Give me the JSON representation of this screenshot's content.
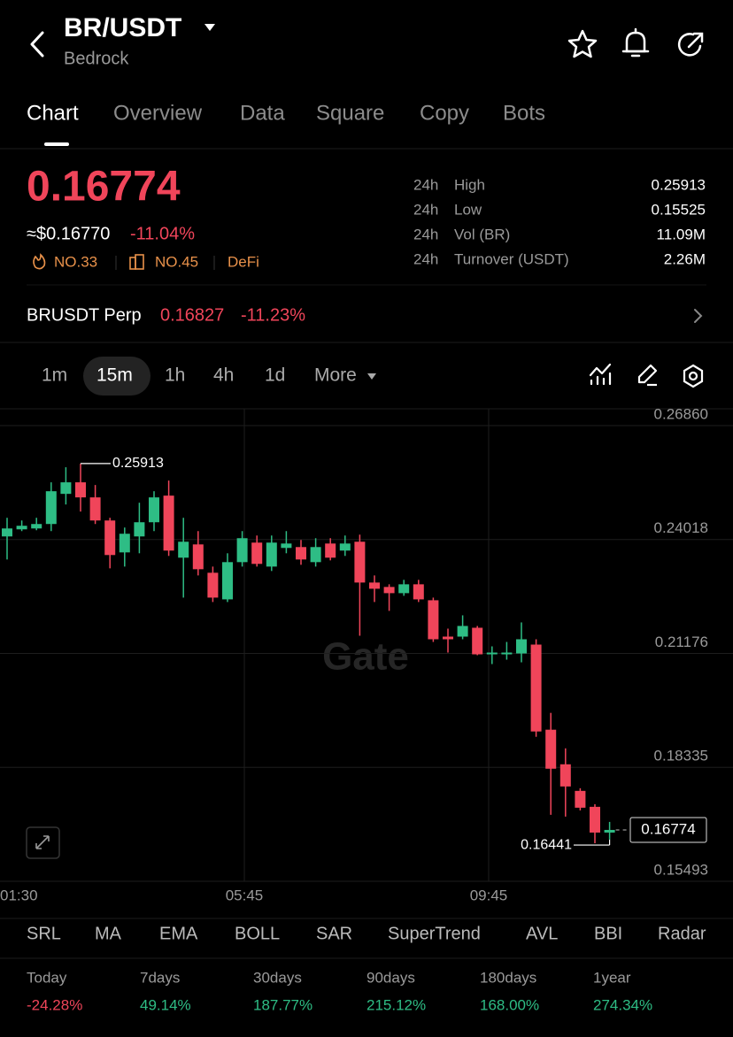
{
  "header": {
    "title": "BR/USDT",
    "subtitle": "Bedrock"
  },
  "tabs": [
    "Chart",
    "Overview",
    "Data",
    "Square",
    "Copy",
    "Bots"
  ],
  "price": {
    "last": "0.16774",
    "fiat": "≈$0.16770",
    "change": "-11.04%",
    "badges": [
      "NO.33",
      "NO.45",
      "DeFi"
    ]
  },
  "stats": [
    {
      "period": "24h",
      "label": "High",
      "value": "0.25913"
    },
    {
      "period": "24h",
      "label": "Low",
      "value": "0.15525"
    },
    {
      "period": "24h",
      "label": "Vol (BR)",
      "value": "11.09M"
    },
    {
      "period": "24h",
      "label": "Turnover (USDT)",
      "value": "2.26M"
    }
  ],
  "perp": {
    "name": "BRUSDT Perp",
    "price": "0.16827",
    "change": "-11.23%"
  },
  "intervals": [
    "1m",
    "15m",
    "1h",
    "4h",
    "1d",
    "More"
  ],
  "chart_data": {
    "type": "candlestick",
    "watermark": "Gate",
    "ylim": [
      0.15493,
      0.2686
    ],
    "yticks": [
      {
        "value": 0.2686,
        "label": "0.26860"
      },
      0.24018,
      0.21176,
      0.18335,
      0.15493
    ],
    "x_labels": [
      "01:30",
      "05:45",
      "09:45"
    ],
    "grid": true,
    "up_color": "#2ebd85",
    "down_color": "#f0455a",
    "open": [
      0.24095,
      0.24272,
      0.24294,
      0.24405,
      0.25157,
      0.25445,
      0.25069,
      0.24493,
      0.23697,
      0.24095,
      0.24449,
      0.25113,
      0.23565,
      0.23896,
      0.23189,
      0.22525,
      0.23454,
      0.23941,
      0.23343,
      0.23808,
      0.2383,
      0.23454,
      0.23918,
      0.23742,
      0.23963,
      0.22945,
      0.22835,
      0.2268,
      0.22901,
      0.22503,
      0.21596,
      0.21596,
      0.21817,
      0.21154,
      0.21154,
      0.21176,
      0.21397,
      0.19274,
      0.18411,
      0.17748,
      0.1735,
      0.16708
    ],
    "high": [
      0.2456,
      0.24493,
      0.2456,
      0.25445,
      0.25821,
      0.25913,
      0.25378,
      0.2456,
      0.24317,
      0.24936,
      0.25223,
      0.25489,
      0.2456,
      0.24228,
      0.23343,
      0.23675,
      0.24228,
      0.24118,
      0.24118,
      0.24228,
      0.24007,
      0.24051,
      0.24051,
      0.24118,
      0.2414,
      0.23122,
      0.22901,
      0.23012,
      0.23012,
      0.22569,
      0.21795,
      0.22127,
      0.21862,
      0.21353,
      0.21463,
      0.2195,
      0.2153,
      0.19694,
      0.18809,
      0.17814,
      0.17416,
      0.16974
    ],
    "low": [
      0.2352,
      0.24228,
      0.2425,
      0.24228,
      0.24892,
      0.24715,
      0.24405,
      0.23299,
      0.23343,
      0.23675,
      0.24228,
      0.23609,
      0.22569,
      0.23122,
      0.22459,
      0.22459,
      0.23343,
      0.23343,
      0.23233,
      0.23675,
      0.23388,
      0.23343,
      0.23498,
      0.23609,
      0.21618,
      0.22459,
      0.22238,
      0.22614,
      0.22459,
      0.21463,
      0.21198,
      0.2153,
      0.21132,
      0.20911,
      0.21021,
      0.20955,
      0.19097,
      0.17151,
      0.17106,
      0.17261,
      0.16441,
      0.16531
    ],
    "close": [
      0.24294,
      0.24361,
      0.24405,
      0.25223,
      0.25445,
      0.25069,
      0.24493,
      0.23631,
      0.24162,
      0.24449,
      0.25069,
      0.23742,
      0.23963,
      0.23277,
      0.22569,
      0.23454,
      0.24051,
      0.2341,
      0.23941,
      0.23918,
      0.2352,
      0.2383,
      0.23565,
      0.23918,
      0.22945,
      0.2279,
      0.2268,
      0.22901,
      0.22525,
      0.2153,
      0.2153,
      0.21862,
      0.21154,
      0.21198,
      0.21198,
      0.2153,
      0.1923,
      0.18301,
      0.17858,
      0.17328,
      0.16708,
      0.16774
    ]
  },
  "indicators": [
    "SRL",
    "MA",
    "EMA",
    "BOLL",
    "SAR",
    "SuperTrend",
    "AVL",
    "BBI",
    "Radar"
  ],
  "performance": [
    {
      "period": "Today",
      "change": "-24.28%"
    },
    {
      "period": "7days",
      "change": "49.14%"
    },
    {
      "period": "30days",
      "change": "187.77%"
    },
    {
      "period": "90days",
      "change": "215.12%"
    },
    {
      "period": "180days",
      "change": "168.00%"
    },
    {
      "period": "1year",
      "change": "274.34%"
    }
  ]
}
